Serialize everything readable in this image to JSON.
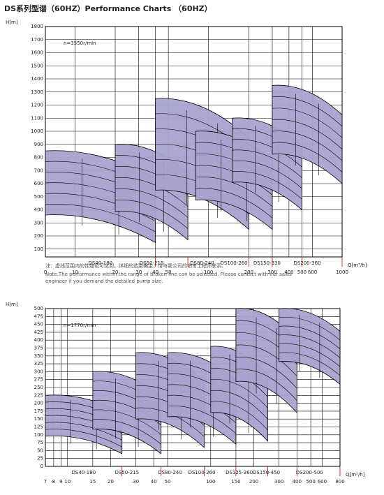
{
  "title": "DS系列型谱（60HZ）Performance Charts （60HZ）",
  "note": {
    "cn": "注：虚线范围内的性能也可达到。详细的选型确定，请与我公司的销售工程师联系。",
    "en1": "Note:The performance within the range of broken line can be selected. Please contact with our sales",
    "en2": "engineer if you demand the detailed pump size."
  },
  "chart_data": [
    {
      "type": "range",
      "y_label": "H[m]",
      "x_label": "Q[m³/h]",
      "annotation": "n=3550r/min",
      "x_origin_label": "0",
      "log_x": true,
      "grid": true,
      "color": "#a9a3cf",
      "xlim": [
        6,
        1000
      ],
      "ylim": [
        40,
        1800
      ],
      "xticks": [
        10,
        20,
        30,
        40,
        50,
        100,
        200,
        300,
        400,
        500,
        600,
        1000
      ],
      "yticks": [
        100,
        200,
        300,
        400,
        500,
        600,
        700,
        800,
        900,
        1000,
        1100,
        1200,
        1300,
        1400,
        1500,
        1600,
        1700,
        1800
      ],
      "groups": [
        {
          "name": "DS40-180",
          "q": [
            6,
            40
          ],
          "h": [
            150,
            850
          ]
        },
        {
          "name": "DS50-215",
          "q": [
            20,
            70
          ],
          "h": [
            170,
            900
          ]
        },
        {
          "name": "DS80-240",
          "q": [
            40,
            200
          ],
          "h": [
            250,
            1250
          ]
        },
        {
          "name": "DS100-260",
          "q": [
            80,
            300
          ],
          "h": [
            250,
            1000
          ]
        },
        {
          "name": "DS150-330",
          "q": [
            150,
            500
          ],
          "h": [
            400,
            1100
          ]
        },
        {
          "name": "DS200-360",
          "q": [
            300,
            1000
          ],
          "h": [
            600,
            1350
          ]
        }
      ]
    },
    {
      "type": "range",
      "y_label": "H[m]",
      "x_label": "Q[m³/h]",
      "annotation": "n=1770r/min",
      "log_x": true,
      "grid": true,
      "color": "#a9a3cf",
      "xlim": [
        7,
        800
      ],
      "ylim": [
        0,
        500
      ],
      "xticks": [
        7,
        8,
        9,
        10,
        15,
        20,
        30,
        40,
        50,
        100,
        150,
        200,
        300,
        400,
        500,
        600,
        800
      ],
      "yticks": [
        0,
        25,
        50,
        75,
        100,
        125,
        150,
        175,
        200,
        225,
        250,
        275,
        300,
        325,
        350,
        375,
        400,
        425,
        450,
        475,
        500
      ],
      "groups": [
        {
          "name": "DS40-180",
          "q": [
            7,
            24
          ],
          "h": [
            40,
            225
          ]
        },
        {
          "name": "DS50-215",
          "q": [
            15,
            45
          ],
          "h": [
            40,
            300
          ]
        },
        {
          "name": "DS80-240",
          "q": [
            30,
            90
          ],
          "h": [
            60,
            360
          ]
        },
        {
          "name": "DS100-260",
          "q": [
            50,
            150
          ],
          "h": [
            70,
            360
          ]
        },
        {
          "name": "DS125-360",
          "q": [
            100,
            250
          ],
          "h": [
            80,
            380
          ]
        },
        {
          "name": "DS150-450",
          "q": [
            150,
            400
          ],
          "h": [
            170,
            500
          ]
        },
        {
          "name": "DS200-500",
          "q": [
            300,
            800
          ],
          "h": [
            260,
            500
          ]
        }
      ]
    }
  ]
}
